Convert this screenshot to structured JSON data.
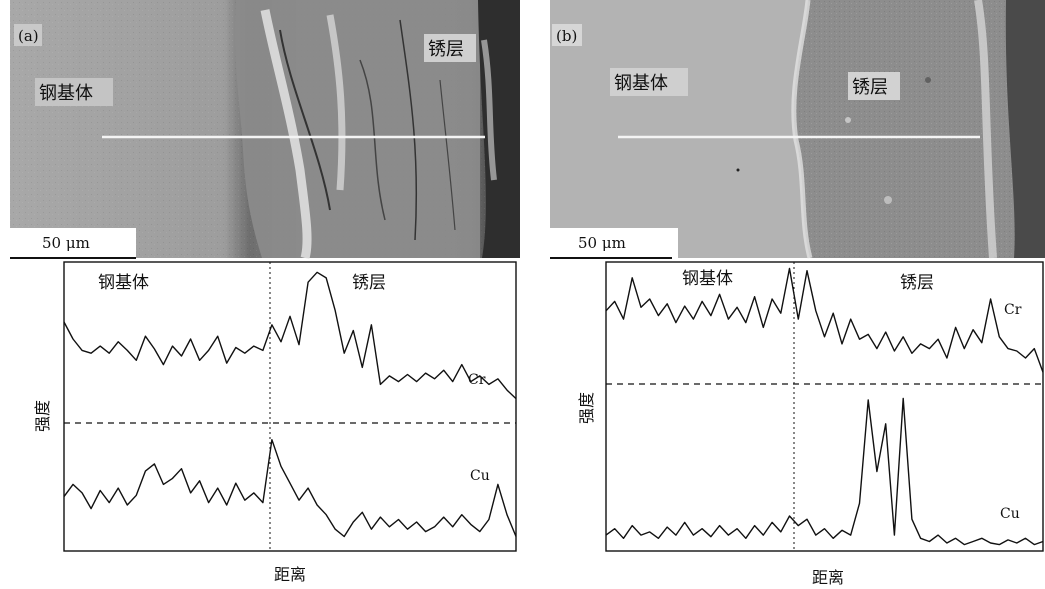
{
  "figure": {
    "panels": [
      {
        "id": "a",
        "letter": "(a)",
        "sem": {
          "substrate_label": "钢基体",
          "rust_label": "锈层",
          "scale_bar": "50 μm"
        },
        "profile": {
          "left_label": "钢基体",
          "right_label": "锈层",
          "ylabel": "强度",
          "xlabel": "距离"
        }
      },
      {
        "id": "b",
        "letter": "(b)",
        "sem": {
          "substrate_label": "钢基体",
          "rust_label": "锈层",
          "scale_bar": "50 μm"
        },
        "profile": {
          "left_label": "钢基体",
          "right_label": "锈层",
          "ylabel": "强度",
          "xlabel": "距离"
        }
      }
    ]
  },
  "chart_data": [
    {
      "type": "line",
      "panel": "(a)",
      "xlabel": "距离",
      "ylabel": "强度",
      "regions": [
        "钢基体",
        "锈层"
      ],
      "boundary_x": 0.45,
      "x": [
        0.0,
        0.02,
        0.04,
        0.06,
        0.08,
        0.1,
        0.12,
        0.14,
        0.16,
        0.18,
        0.2,
        0.22,
        0.24,
        0.26,
        0.28,
        0.3,
        0.32,
        0.34,
        0.36,
        0.38,
        0.4,
        0.42,
        0.44,
        0.46,
        0.48,
        0.5,
        0.52,
        0.54,
        0.56,
        0.58,
        0.6,
        0.62,
        0.64,
        0.66,
        0.68,
        0.7,
        0.72,
        0.74,
        0.76,
        0.78,
        0.8,
        0.82,
        0.84,
        0.86,
        0.88,
        0.9,
        0.92,
        0.94,
        0.96,
        0.98,
        1.0
      ],
      "series": [
        {
          "name": "Cr",
          "values": [
            0.62,
            0.5,
            0.42,
            0.4,
            0.45,
            0.4,
            0.48,
            0.42,
            0.35,
            0.52,
            0.43,
            0.32,
            0.45,
            0.38,
            0.5,
            0.35,
            0.42,
            0.52,
            0.33,
            0.44,
            0.4,
            0.45,
            0.42,
            0.6,
            0.48,
            0.66,
            0.46,
            0.9,
            0.97,
            0.93,
            0.7,
            0.4,
            0.56,
            0.3,
            0.6,
            0.18,
            0.24,
            0.2,
            0.25,
            0.2,
            0.26,
            0.22,
            0.28,
            0.2,
            0.32,
            0.2,
            0.24,
            0.18,
            0.22,
            0.14,
            0.08
          ]
        },
        {
          "name": "Cu",
          "values": [
            0.45,
            0.55,
            0.48,
            0.35,
            0.5,
            0.4,
            0.52,
            0.38,
            0.46,
            0.66,
            0.72,
            0.55,
            0.6,
            0.68,
            0.48,
            0.58,
            0.4,
            0.52,
            0.38,
            0.56,
            0.42,
            0.48,
            0.4,
            0.92,
            0.7,
            0.56,
            0.42,
            0.52,
            0.38,
            0.3,
            0.18,
            0.12,
            0.24,
            0.32,
            0.18,
            0.28,
            0.2,
            0.26,
            0.18,
            0.24,
            0.16,
            0.2,
            0.28,
            0.2,
            0.3,
            0.22,
            0.16,
            0.26,
            0.55,
            0.3,
            0.12
          ]
        }
      ]
    },
    {
      "type": "line",
      "panel": "(b)",
      "xlabel": "距离",
      "ylabel": "强度",
      "regions": [
        "钢基体",
        "锈层"
      ],
      "boundary_x": 0.42,
      "x": [
        0.0,
        0.02,
        0.04,
        0.06,
        0.08,
        0.1,
        0.12,
        0.14,
        0.16,
        0.18,
        0.2,
        0.22,
        0.24,
        0.26,
        0.28,
        0.3,
        0.32,
        0.34,
        0.36,
        0.38,
        0.4,
        0.42,
        0.44,
        0.46,
        0.48,
        0.5,
        0.52,
        0.54,
        0.56,
        0.58,
        0.6,
        0.62,
        0.64,
        0.66,
        0.68,
        0.7,
        0.72,
        0.74,
        0.76,
        0.78,
        0.8,
        0.82,
        0.84,
        0.86,
        0.88,
        0.9,
        0.92,
        0.94,
        0.96,
        0.98,
        1.0
      ],
      "series": [
        {
          "name": "Cr",
          "values": [
            0.62,
            0.7,
            0.55,
            0.9,
            0.65,
            0.72,
            0.58,
            0.68,
            0.52,
            0.66,
            0.55,
            0.7,
            0.58,
            0.76,
            0.55,
            0.65,
            0.52,
            0.74,
            0.48,
            0.72,
            0.6,
            0.98,
            0.55,
            0.96,
            0.62,
            0.4,
            0.6,
            0.34,
            0.55,
            0.38,
            0.42,
            0.3,
            0.44,
            0.28,
            0.4,
            0.26,
            0.34,
            0.3,
            0.38,
            0.22,
            0.48,
            0.3,
            0.46,
            0.35,
            0.72,
            0.4,
            0.3,
            0.28,
            0.22,
            0.3,
            0.1
          ]
        },
        {
          "name": "Cu",
          "values": [
            0.1,
            0.14,
            0.08,
            0.16,
            0.1,
            0.12,
            0.08,
            0.15,
            0.1,
            0.18,
            0.1,
            0.14,
            0.09,
            0.16,
            0.1,
            0.14,
            0.08,
            0.16,
            0.1,
            0.18,
            0.12,
            0.22,
            0.16,
            0.2,
            0.1,
            0.14,
            0.08,
            0.13,
            0.1,
            0.3,
            0.95,
            0.5,
            0.8,
            0.1,
            0.96,
            0.2,
            0.08,
            0.06,
            0.1,
            0.05,
            0.08,
            0.04,
            0.06,
            0.08,
            0.05,
            0.04,
            0.07,
            0.05,
            0.08,
            0.04,
            0.06
          ]
        }
      ]
    }
  ]
}
